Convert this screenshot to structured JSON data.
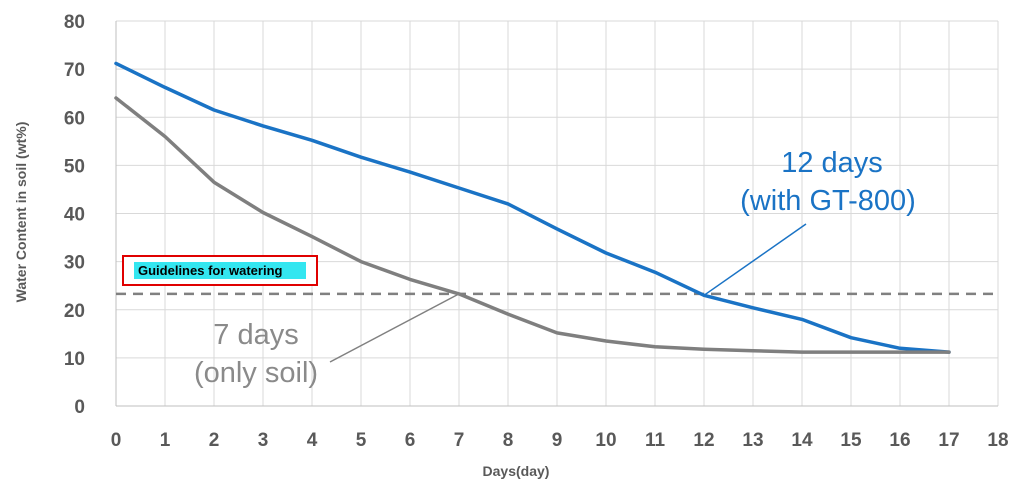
{
  "chart_data": {
    "type": "line",
    "title": "",
    "xlabel": "Days(day)",
    "ylabel": "Water Content in soil (wt%)",
    "xlim": [
      0,
      18
    ],
    "ylim": [
      0,
      80
    ],
    "x_ticks": [
      "0",
      "1",
      "2",
      "3",
      "4",
      "5",
      "6",
      "7",
      "8",
      "9",
      "10",
      "11",
      "12",
      "13",
      "14",
      "15",
      "16",
      "17",
      "18"
    ],
    "y_ticks": [
      "0",
      "10",
      "20",
      "30",
      "40",
      "50",
      "60",
      "70",
      "80"
    ],
    "grid": true,
    "series": [
      {
        "color": "#1a73c5",
        "x": [
          0,
          1,
          2,
          3,
          4,
          5,
          6,
          7,
          8,
          9,
          10,
          11,
          12,
          13,
          14,
          15,
          16,
          17
        ],
        "values": [
          71.2,
          66.2,
          61.5,
          58.2,
          55.2,
          51.7,
          48.6,
          45.3,
          42,
          36.8,
          31.8,
          27.8,
          23,
          20.4,
          18,
          14.2,
          12,
          11.2
        ]
      },
      {
        "color": "#7f7f7f",
        "x": [
          0,
          1,
          2,
          3,
          4,
          5,
          6,
          7,
          8,
          9,
          10,
          11,
          12,
          13,
          14,
          15,
          16,
          17
        ],
        "values": [
          64,
          56,
          46.5,
          40.2,
          35.2,
          30,
          26.3,
          23.3,
          19.1,
          15.2,
          13.5,
          12.3,
          11.8,
          11.5,
          11.2,
          11.2,
          11.2,
          11.2
        ]
      }
    ],
    "guideline": {
      "value": 23.3,
      "color": "#808080",
      "label": "Guidelines for watering",
      "label_bg": "#33e6f0",
      "box_color": "#e00000"
    },
    "annotations": [
      {
        "line1": "12 days",
        "line2": "(with GT-800)",
        "color": "#1a73c5",
        "target_x": 12,
        "target_y": 23
      },
      {
        "line1": "7 days",
        "line2": "(only soil)",
        "color": "#8a8a8a",
        "target_x": 7,
        "target_y": 23.3
      }
    ]
  }
}
